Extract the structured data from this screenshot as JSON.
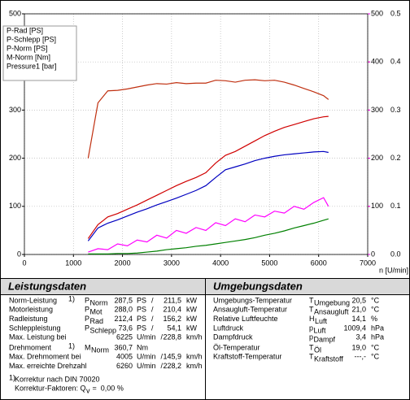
{
  "chart_data": {
    "type": "line",
    "x": [
      1300,
      1500,
      1700,
      1900,
      2100,
      2300,
      2500,
      2700,
      2900,
      3100,
      3300,
      3500,
      3700,
      3900,
      4100,
      4300,
      4500,
      4700,
      4900,
      5100,
      5300,
      5500,
      5700,
      5900,
      6100,
      6200
    ],
    "xlim": [
      0,
      7000
    ],
    "xticks": [
      0,
      1000,
      2000,
      3000,
      4000,
      5000,
      6000,
      7000
    ],
    "xlabel": "n [U/min]",
    "ylim": [
      0,
      500
    ],
    "yticks": [
      0,
      100,
      200,
      300,
      400,
      500
    ],
    "y2lim": [
      0,
      500
    ],
    "y2ticks": [
      0,
      100,
      200,
      300,
      400,
      500
    ],
    "y3lim": [
      0,
      0.5
    ],
    "y3ticks": [
      {
        "value": 0,
        "label": "0.0"
      },
      0.1,
      0.2,
      0.3,
      0.4,
      0.5
    ],
    "grid": true,
    "legend": "upper left",
    "series": [
      {
        "name": "P-Rad [PS]",
        "color": "#0000c0",
        "values": [
          28,
          55,
          65,
          72,
          80,
          88,
          95,
          103,
          110,
          117,
          125,
          133,
          143,
          160,
          176,
          182,
          188,
          195,
          200,
          204,
          207,
          209,
          211,
          213,
          214,
          212
        ]
      },
      {
        "name": "P-Schlepp [PS]",
        "color": "#008000",
        "values": [
          1,
          1,
          1,
          2,
          2,
          3,
          5,
          7,
          10,
          12,
          14,
          17,
          19,
          22,
          25,
          28,
          31,
          35,
          40,
          44,
          49,
          55,
          60,
          65,
          71,
          74
        ]
      },
      {
        "name": "P-Norm [PS]",
        "color": "#d00000",
        "values": [
          33,
          62,
          78,
          85,
          94,
          103,
          113,
          123,
          133,
          143,
          152,
          160,
          170,
          190,
          206,
          214,
          225,
          236,
          247,
          256,
          264,
          270,
          276,
          282,
          286,
          287
        ]
      },
      {
        "name": "M-Norm [Nm]",
        "color": "#c03010",
        "axis": "y2",
        "values": [
          200,
          315,
          340,
          341,
          344,
          348,
          352,
          355,
          354,
          357,
          355,
          356,
          356,
          362,
          361,
          358,
          362,
          363,
          361,
          362,
          358,
          352,
          345,
          338,
          330,
          322
        ]
      },
      {
        "name": "Pressure1 [bar]",
        "color": "#ff00ff",
        "axis": "y3",
        "values": [
          0.005,
          0.012,
          0.01,
          0.022,
          0.018,
          0.03,
          0.026,
          0.04,
          0.034,
          0.05,
          0.044,
          0.056,
          0.05,
          0.066,
          0.06,
          0.074,
          0.068,
          0.082,
          0.078,
          0.09,
          0.086,
          0.1,
          0.094,
          0.108,
          0.118,
          0.1
        ]
      }
    ]
  },
  "leistungsdaten": {
    "title": "Leistungsdaten",
    "power_rows": [
      {
        "label": "Norm-Leistung",
        "note": "1)",
        "symbol": "P",
        "sub": "Norm",
        "value": "287,5",
        "unit": "PS",
        "sep": "/",
        "value2": "211,5",
        "unit2": "kW",
        "color": "#d00000"
      },
      {
        "label": "Motorleistung",
        "symbol": "P",
        "sub": "Mot",
        "value": "288,0",
        "unit": "PS",
        "sep": "/",
        "value2": "210,4",
        "unit2": "kW",
        "color": "#c00000"
      },
      {
        "label": "Radleistung",
        "symbol": "P",
        "sub": "Rad",
        "value": "212,4",
        "unit": "PS",
        "sep": "/",
        "value2": "156,2",
        "unit2": "kW",
        "color": "#0000c0"
      },
      {
        "label": "Schleppleistung",
        "symbol": "P",
        "sub": "Schlepp",
        "value": "73,6",
        "unit": "PS",
        "sep": "/",
        "value2": "54,1",
        "unit2": "kW",
        "color": "#008000"
      },
      {
        "label": "Max. Leistung bei",
        "value": "6225",
        "unit": "U/min",
        "sep": "/",
        "value2": "228,8",
        "unit2": "km/h",
        "color": "#000000"
      }
    ],
    "torque_rows": [
      {
        "label": "Drehmoment",
        "note": "1)",
        "symbol": "M",
        "sub": "Norm",
        "value": "360,7",
        "unit": "Nm",
        "color": "#d00000"
      },
      {
        "label": "Max. Drehmoment bei",
        "value": "4005",
        "unit": "U/min",
        "sep": "/",
        "value2": "145,9",
        "unit2": "km/h",
        "color": "#000000"
      },
      {
        "label": "Max. erreichte Drehzahl",
        "value": "6260",
        "unit": "U/min",
        "sep": "/",
        "value2": "228,2",
        "unit2": "km/h",
        "color": "#000000"
      }
    ],
    "footnote": {
      "mark": "1)",
      "text": "Korrektur nach DIN 70020",
      "factor_label": "Korrektur-Faktoren: Q",
      "factor_sub": "v",
      "eq": "=",
      "factor_value": "0,00 %",
      "color": "#d00000"
    }
  },
  "umgebungsdaten": {
    "title": "Umgebungsdaten",
    "rows": [
      {
        "label": "Umgebungs-Temperatur",
        "symbol": "T",
        "sub": "Umgebung",
        "value": "20,5",
        "unit": "°C"
      },
      {
        "label": "Ansaugluft-Temperatur",
        "symbol": "T",
        "sub": "Ansaugluft",
        "value": "21,0",
        "unit": "°C"
      },
      {
        "label": "Relative Luftfeuchte",
        "symbol": "H",
        "sub": "Luft",
        "value": "14,1",
        "unit": "%"
      },
      {
        "label": "Luftdruck",
        "symbol": "p",
        "sub": "Luft",
        "value": "1009,4",
        "unit": "hPa"
      },
      {
        "label": "Dampfdruck",
        "symbol": "p",
        "sub": "Dampf",
        "value": "3,4",
        "unit": "hPa"
      }
    ],
    "rows2": [
      {
        "label": "Öl-Temperatur",
        "symbol": "T",
        "sub": "Öl",
        "value": "19,0",
        "unit": "°C"
      },
      {
        "label": "Kraftstoff-Temperatur",
        "symbol": "T",
        "sub": "Kraftstoff",
        "value": "---,-",
        "unit": "°C"
      }
    ]
  }
}
